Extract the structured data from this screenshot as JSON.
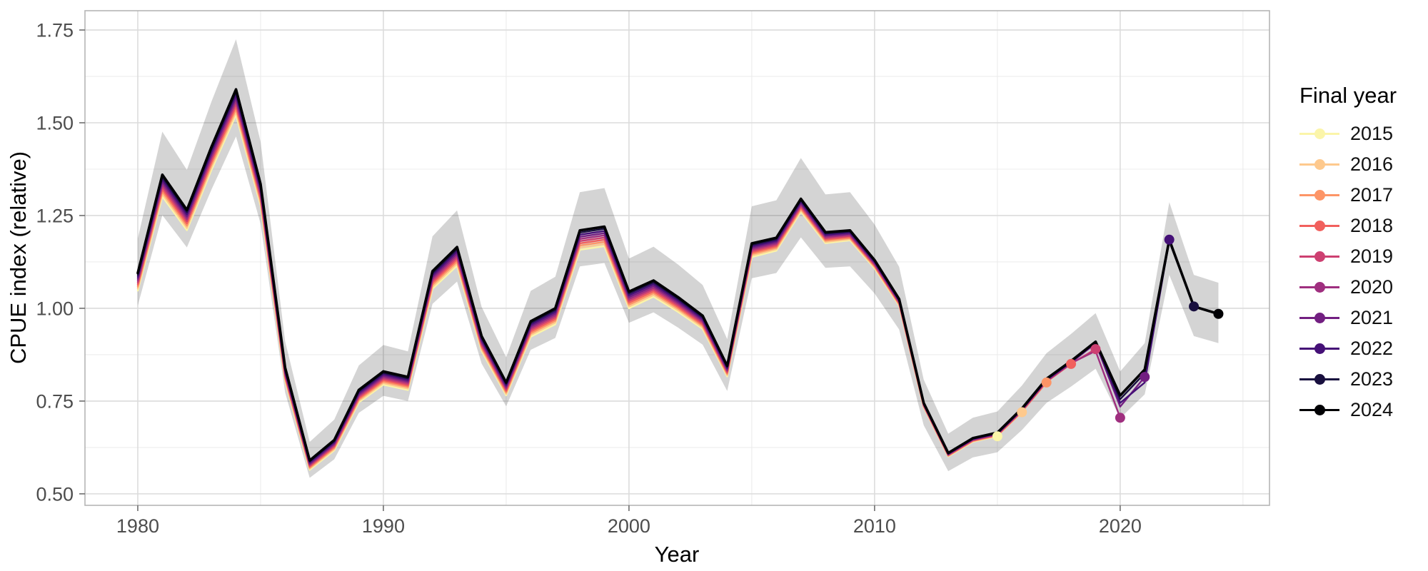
{
  "chart_data": {
    "type": "line",
    "title": "",
    "xlabel": "Year",
    "ylabel": "CPUE index (relative)",
    "legend_title": "Final year",
    "legend_position": "right",
    "grid": "on",
    "panel_background": "#ffffff",
    "major_grid_color": "#dcdcdc",
    "minor_grid_color": "#ececec",
    "panel_border_color": "#b5b5b5",
    "tick_color": "#6e6e6e",
    "tick_label_color": "#4d4d4d",
    "xlim": [
      1977.85,
      2026.08
    ],
    "ylim": [
      0.469,
      1.802
    ],
    "x_major_ticks": [
      1980,
      1990,
      2000,
      2010,
      2020
    ],
    "x_minor_ticks": [
      1985,
      1995,
      2005,
      2015,
      2025
    ],
    "y_major_ticks": [
      0.5,
      0.75,
      1.0,
      1.25,
      1.5,
      1.75
    ],
    "y_tick_labels": [
      "0.50",
      "0.75",
      "1.00",
      "1.25",
      "1.50",
      "1.75"
    ],
    "y_minor_ticks": [
      0.625,
      0.875,
      1.125,
      1.375,
      1.625
    ],
    "year_start": 1980,
    "years_end": 2024,
    "base": [
      1.095,
      1.36,
      1.265,
      1.435,
      1.59,
      1.335,
      0.84,
      0.59,
      0.645,
      0.78,
      0.83,
      0.815,
      1.1,
      1.165,
      0.925,
      0.8,
      0.965,
      1.0,
      1.21,
      1.22,
      1.045,
      1.075,
      1.03,
      0.98,
      0.845,
      1.175,
      1.19,
      1.295,
      1.205,
      1.21,
      1.13,
      1.025,
      0.745,
      0.61,
      0.65,
      0.665,
      0.73,
      0.81,
      0.858,
      0.91,
      0.765,
      0.835,
      1.185,
      1.005,
      0.985
    ],
    "ribbon_lower": [
      1.007,
      1.251,
      1.164,
      1.32,
      1.463,
      1.228,
      0.773,
      0.543,
      0.593,
      0.718,
      0.764,
      0.75,
      1.012,
      1.072,
      0.851,
      0.736,
      0.888,
      0.92,
      1.113,
      1.122,
      0.961,
      0.989,
      0.948,
      0.902,
      0.777,
      1.081,
      1.095,
      1.191,
      1.109,
      1.113,
      1.04,
      0.943,
      0.685,
      0.561,
      0.598,
      0.612,
      0.672,
      0.745,
      0.789,
      0.837,
      0.704,
      0.768,
      1.09,
      0.925,
      0.906
    ],
    "ribbon_upper": [
      1.188,
      1.476,
      1.373,
      1.557,
      1.725,
      1.449,
      0.911,
      0.64,
      0.7,
      0.846,
      0.901,
      0.884,
      1.194,
      1.264,
      1.004,
      0.868,
      1.047,
      1.085,
      1.313,
      1.324,
      1.134,
      1.166,
      1.118,
      1.063,
      0.917,
      1.275,
      1.291,
      1.405,
      1.307,
      1.313,
      1.226,
      1.112,
      0.808,
      0.662,
      0.705,
      0.722,
      0.792,
      0.879,
      0.931,
      0.987,
      0.83,
      0.906,
      1.286,
      1.09,
      1.069
    ],
    "ribbon_color": "#000000",
    "ribbon_opacity": 0.17,
    "retro_model": {
      "deviation_per_series_year": 0.0048,
      "decay_start_year": 2000,
      "decay_end_year": 2012,
      "decay_floor": 0.35
    },
    "series": [
      {
        "final_year": 2015,
        "label": "2015",
        "color": "#FBF5A9",
        "end_value": 0.655,
        "overrides": {}
      },
      {
        "final_year": 2016,
        "label": "2016",
        "color": "#FEC98D",
        "end_value": 0.72,
        "overrides": {}
      },
      {
        "final_year": 2017,
        "label": "2017",
        "color": "#FD9567",
        "end_value": 0.8,
        "overrides": {}
      },
      {
        "final_year": 2018,
        "label": "2018",
        "color": "#F1605D",
        "end_value": 0.85,
        "overrides": {}
      },
      {
        "final_year": 2019,
        "label": "2019",
        "color": "#CD4071",
        "end_value": 0.89,
        "overrides": {}
      },
      {
        "final_year": 2020,
        "label": "2020",
        "color": "#9F2F7F",
        "end_value": 0.705,
        "overrides": {
          "2019": 0.885
        }
      },
      {
        "final_year": 2021,
        "label": "2021",
        "color": "#721F81",
        "end_value": 0.815,
        "overrides": {
          "2020": 0.735
        }
      },
      {
        "final_year": 2022,
        "label": "2022",
        "color": "#451077",
        "end_value": 1.185,
        "overrides": {
          "2020": 0.745,
          "2021": 0.8
        }
      },
      {
        "final_year": 2023,
        "label": "2023",
        "color": "#180F3E",
        "end_value": 1.005,
        "overrides": {
          "2020": 0.755,
          "2021": 0.825,
          "2022": 1.18
        }
      },
      {
        "final_year": 2024,
        "label": "2024",
        "color": "#000004",
        "end_value": 0.985,
        "overrides": {}
      }
    ]
  }
}
